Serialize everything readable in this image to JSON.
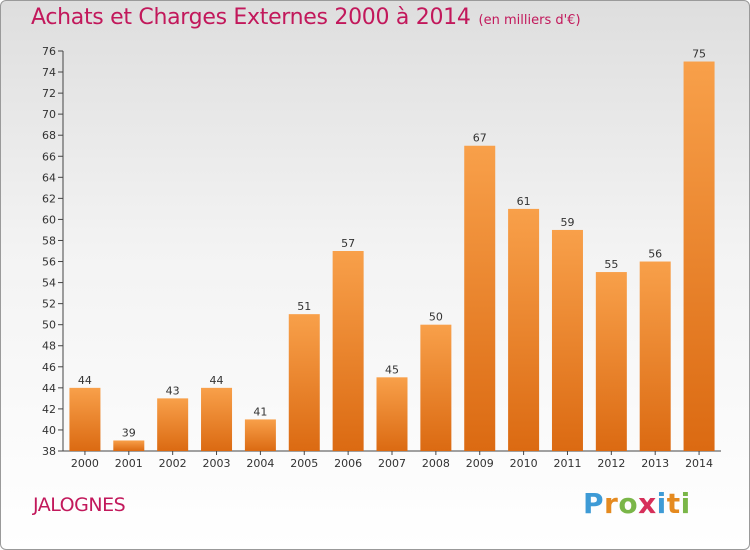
{
  "title": "Achats et Charges Externes 2000 à 2014",
  "unit": "(en milliers d'€)",
  "commune": "JALOGNES",
  "logo": {
    "letters": [
      "P",
      "r",
      "o",
      "x",
      "i",
      "t",
      "i"
    ],
    "colors": [
      "#3e9bd6",
      "#e58a1f",
      "#7ab648",
      "#d62f5a",
      "#3e9bd6",
      "#e58a1f",
      "#7ab648"
    ]
  },
  "colors": {
    "bar_light": "#f8a04a",
    "bar_dark": "#db6a12",
    "title": "#c2185b"
  },
  "chart_data": {
    "type": "bar",
    "title": "Achats et Charges Externes 2000 à 2014",
    "categories": [
      "2000",
      "2001",
      "2002",
      "2003",
      "2004",
      "2005",
      "2006",
      "2007",
      "2008",
      "2009",
      "2010",
      "2011",
      "2012",
      "2013",
      "2014"
    ],
    "values": [
      44,
      39,
      43,
      44,
      41,
      51,
      57,
      45,
      50,
      67,
      61,
      59,
      55,
      56,
      75
    ],
    "ylim": [
      38,
      76
    ],
    "yticks": [
      38,
      40,
      42,
      44,
      46,
      48,
      50,
      52,
      54,
      56,
      58,
      60,
      62,
      64,
      66,
      68,
      70,
      72,
      74,
      76
    ],
    "grid": false,
    "xlabel": "",
    "ylabel": ""
  }
}
